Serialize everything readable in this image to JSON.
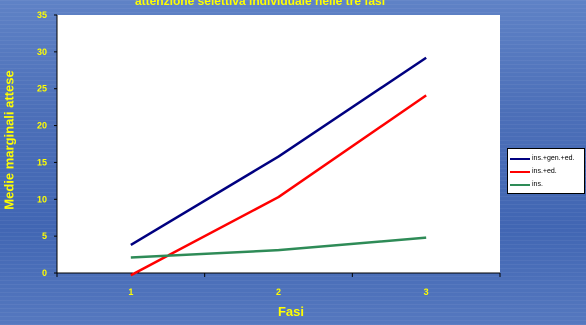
{
  "chart_data": {
    "type": "line",
    "title": "attenzione selettiva individuale nelle tre fasi",
    "xlabel": "Fasi",
    "ylabel": "Medie marginali attese",
    "categories": [
      "1",
      "2",
      "3"
    ],
    "ylim": [
      0,
      35
    ],
    "yticks": [
      "0",
      "5",
      "10",
      "15",
      "20",
      "25",
      "30",
      "35"
    ],
    "grid": false,
    "legend_position": "right",
    "series": [
      {
        "name": "ins.+gen.+ed.",
        "color": "#000080",
        "values": [
          3.8,
          15.8,
          29.2
        ]
      },
      {
        "name": "ins.+ed.",
        "color": "#ff0000",
        "values": [
          -0.3,
          10.3,
          24.1
        ]
      },
      {
        "name": "ins.",
        "color": "#2e8b57",
        "values": [
          2.1,
          3.1,
          4.8
        ]
      }
    ]
  }
}
